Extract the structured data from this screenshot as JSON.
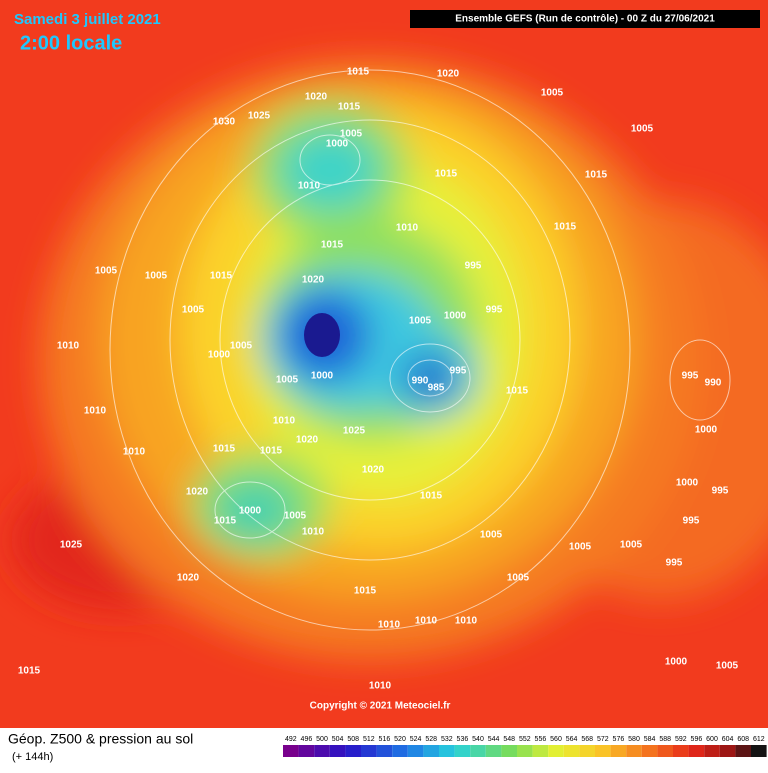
{
  "header": {
    "date": "Samedi 3 juillet 2021",
    "time": "2:00 locale",
    "run": "Ensemble GEFS  (Run de contrôle)  -  00 Z du 27/06/2021"
  },
  "copyright": "Copyright © 2021 Meteociel.fr",
  "footer": {
    "title": "Géop. Z500 & pression au sol",
    "lead": "(+ 144h)"
  },
  "isobar_labels": [
    1015,
    1020,
    1005,
    1020,
    1015,
    1025,
    1030,
    1005,
    1000,
    1005,
    1015,
    1015,
    1010,
    1015,
    1010,
    1015,
    1005,
    1005,
    1015,
    995,
    1020,
    1005,
    995,
    1000,
    1005,
    1010,
    1005,
    1000,
    1000,
    1005,
    995,
    990,
    985,
    1015,
    995,
    990,
    1010,
    1010,
    1025,
    1020,
    1000,
    1010,
    1015,
    1015,
    1020,
    1000,
    1020,
    1015,
    995,
    1000,
    1005,
    1015,
    1010,
    995,
    1005,
    1005,
    1005,
    1025,
    995,
    1005,
    1020,
    1015,
    1010,
    1010,
    1010,
    1015,
    1000,
    1005,
    1010
  ],
  "legend": [
    492,
    496,
    500,
    504,
    508,
    512,
    516,
    520,
    524,
    528,
    532,
    536,
    540,
    544,
    548,
    552,
    556,
    560,
    564,
    568,
    572,
    576,
    580,
    584,
    588,
    592,
    596,
    600,
    604,
    608,
    612
  ]
}
